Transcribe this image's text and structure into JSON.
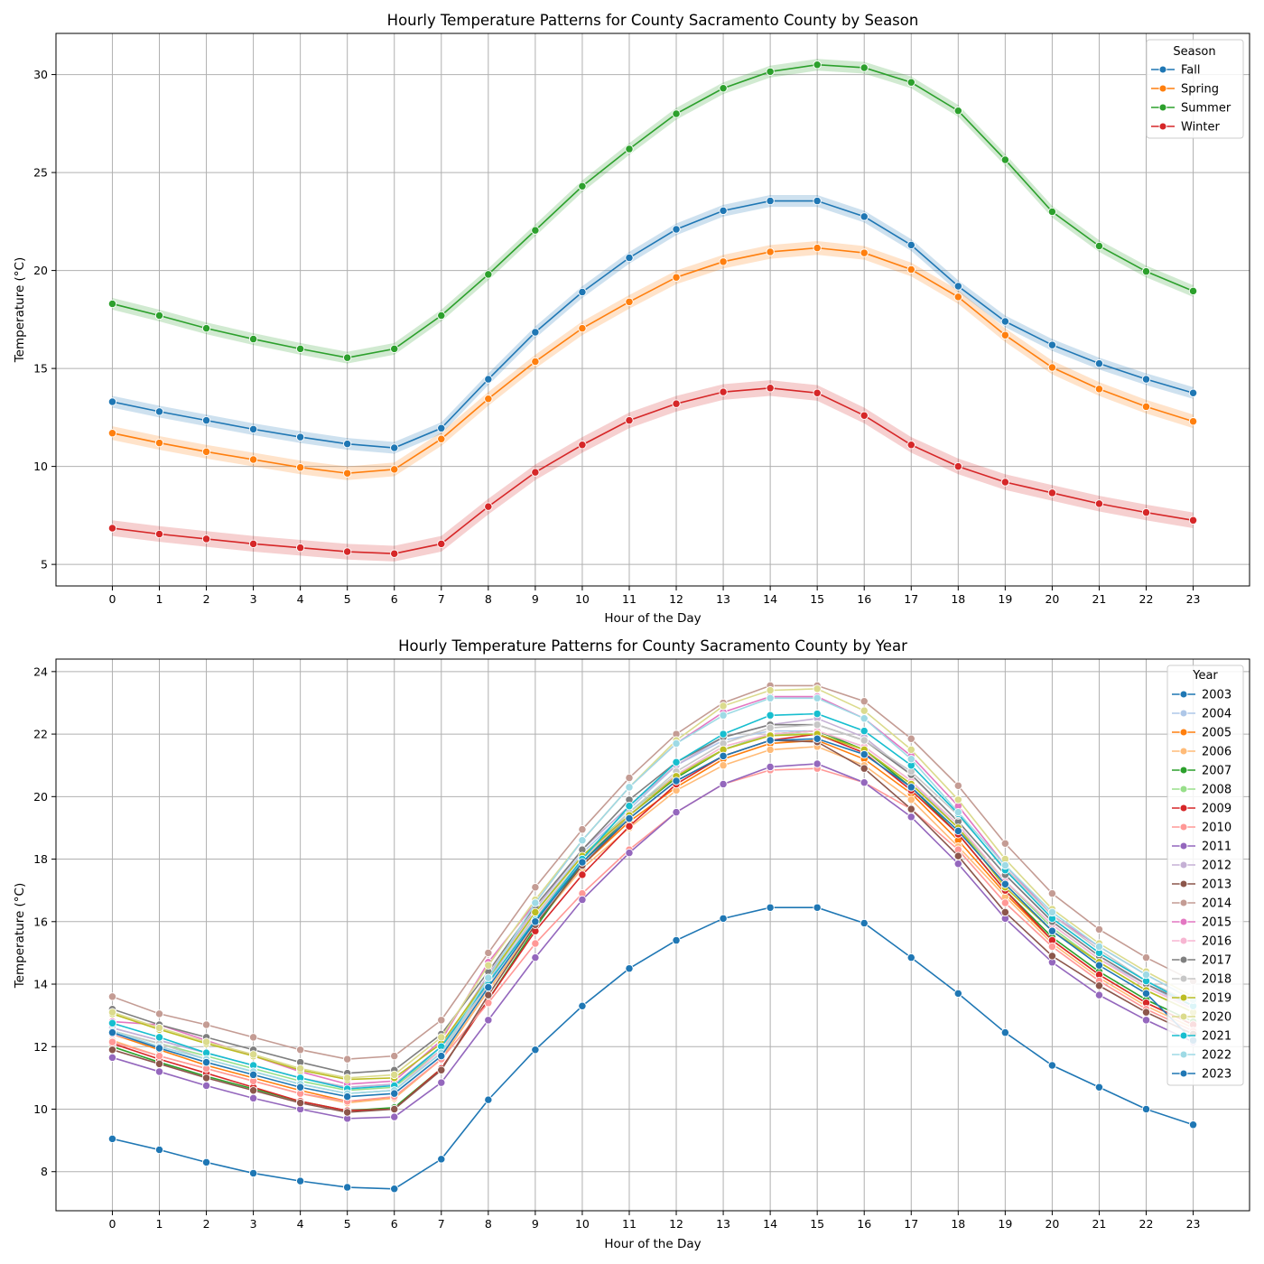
{
  "chart_data": [
    {
      "type": "line",
      "title": "Hourly Temperature Patterns for County Sacramento County by Season",
      "xlabel": "Hour of the Day",
      "ylabel": "Temperature (°C)",
      "x": [
        0,
        1,
        2,
        3,
        4,
        5,
        6,
        7,
        8,
        9,
        10,
        11,
        12,
        13,
        14,
        15,
        16,
        17,
        18,
        19,
        20,
        21,
        22,
        23
      ],
      "xlim": [
        -1.2,
        24.2
      ],
      "ylim": [
        3.9,
        32.1
      ],
      "yticks": [
        5,
        10,
        15,
        20,
        25,
        30
      ],
      "grid": true,
      "legend_title": "Season",
      "legend_position": "top-right",
      "confidence_band": true,
      "series": [
        {
          "name": "Fall",
          "color": "#1f77b4",
          "band": 0.3,
          "values": [
            13.3,
            12.8,
            12.35,
            11.9,
            11.5,
            11.15,
            10.95,
            11.95,
            14.45,
            16.85,
            18.9,
            20.65,
            22.1,
            23.05,
            23.55,
            23.55,
            22.75,
            21.3,
            19.2,
            17.4,
            16.2,
            15.25,
            14.45,
            13.75
          ]
        },
        {
          "name": "Spring",
          "color": "#ff7f0e",
          "band": 0.35,
          "values": [
            11.7,
            11.2,
            10.75,
            10.35,
            9.95,
            9.65,
            9.85,
            11.4,
            13.45,
            15.35,
            17.05,
            18.4,
            19.65,
            20.45,
            20.95,
            21.15,
            20.9,
            20.05,
            18.65,
            16.7,
            15.05,
            13.95,
            13.05,
            12.3
          ]
        },
        {
          "name": "Summer",
          "color": "#2ca02c",
          "band": 0.3,
          "values": [
            18.3,
            17.7,
            17.05,
            16.5,
            16.0,
            15.55,
            16.0,
            17.7,
            19.8,
            22.05,
            24.3,
            26.2,
            28.0,
            29.3,
            30.15,
            30.5,
            30.35,
            29.6,
            28.15,
            25.65,
            23.0,
            21.25,
            19.95,
            18.95
          ]
        },
        {
          "name": "Winter",
          "color": "#d62728",
          "band": 0.4,
          "values": [
            6.85,
            6.55,
            6.3,
            6.05,
            5.85,
            5.65,
            5.55,
            6.05,
            7.95,
            9.7,
            11.1,
            12.35,
            13.2,
            13.8,
            14.0,
            13.75,
            12.6,
            11.1,
            10.0,
            9.2,
            8.65,
            8.1,
            7.65,
            7.25
          ]
        }
      ]
    },
    {
      "type": "line",
      "title": "Hourly Temperature Patterns for County Sacramento County by Year",
      "xlabel": "Hour of the Day",
      "ylabel": "Temperature (°C)",
      "x": [
        0,
        1,
        2,
        3,
        4,
        5,
        6,
        7,
        8,
        9,
        10,
        11,
        12,
        13,
        14,
        15,
        16,
        17,
        18,
        19,
        20,
        21,
        22,
        23
      ],
      "xlim": [
        -1.2,
        24.2
      ],
      "ylim": [
        6.75,
        24.4
      ],
      "yticks": [
        8,
        10,
        12,
        14,
        16,
        18,
        20,
        22,
        24
      ],
      "grid": true,
      "legend_title": "Year",
      "legend_position": "top-right",
      "series": [
        {
          "name": "2003",
          "color": "#1f77b4",
          "values": [
            9.05,
            8.7,
            8.3,
            7.95,
            7.7,
            7.5,
            7.45,
            8.4,
            10.3,
            11.9,
            13.3,
            14.5,
            15.4,
            16.1,
            16.45,
            16.45,
            15.95,
            14.85,
            13.7,
            12.45,
            11.4,
            10.7,
            10.0,
            9.5
          ]
        },
        {
          "name": "2004",
          "color": "#aec7e8",
          "values": [
            12.6,
            12.2,
            11.8,
            11.4,
            11.0,
            10.7,
            10.8,
            11.9,
            14.1,
            16.3,
            18.2,
            19.6,
            21.0,
            21.8,
            22.1,
            22.1,
            21.6,
            20.5,
            19.0,
            17.3,
            15.9,
            14.8,
            14.0,
            13.2
          ]
        },
        {
          "name": "2005",
          "color": "#ff7f0e",
          "values": [
            12.4,
            11.9,
            11.4,
            11.0,
            10.6,
            10.25,
            10.35,
            11.6,
            13.8,
            15.9,
            17.8,
            19.2,
            20.3,
            21.2,
            21.7,
            21.8,
            21.2,
            20.1,
            18.6,
            16.9,
            15.4,
            14.3,
            13.4,
            12.7
          ]
        },
        {
          "name": "2006",
          "color": "#ffbb78",
          "values": [
            12.2,
            11.7,
            11.3,
            10.9,
            10.5,
            10.2,
            10.35,
            11.6,
            13.8,
            15.9,
            17.7,
            19.0,
            20.2,
            21.0,
            21.5,
            21.6,
            21.0,
            19.9,
            18.4,
            16.8,
            15.3,
            14.2,
            13.3,
            12.6
          ]
        },
        {
          "name": "2007",
          "color": "#2ca02c",
          "values": [
            12.0,
            11.5,
            11.05,
            10.65,
            10.25,
            9.95,
            10.05,
            11.3,
            13.5,
            15.8,
            17.9,
            19.4,
            20.6,
            21.5,
            22.0,
            22.1,
            21.5,
            20.3,
            18.8,
            17.0,
            15.5,
            14.4,
            13.5,
            12.8
          ]
        },
        {
          "name": "2008",
          "color": "#98df8a",
          "values": [
            12.5,
            12.1,
            11.7,
            11.3,
            10.9,
            10.6,
            10.7,
            11.9,
            14.2,
            16.3,
            18.1,
            19.5,
            20.7,
            21.5,
            22.0,
            22.0,
            21.5,
            20.4,
            19.0,
            17.3,
            15.8,
            14.7,
            13.8,
            13.1
          ]
        },
        {
          "name": "2009",
          "color": "#d62728",
          "values": [
            12.1,
            11.6,
            11.15,
            10.7,
            10.25,
            9.95,
            10.0,
            11.3,
            13.5,
            15.7,
            17.5,
            19.05,
            20.4,
            21.3,
            21.8,
            22.0,
            21.4,
            20.2,
            18.8,
            17.0,
            15.4,
            14.3,
            13.4,
            12.7
          ]
        },
        {
          "name": "2010",
          "color": "#ff9896",
          "values": [
            12.15,
            11.7,
            11.3,
            10.9,
            10.5,
            10.25,
            10.4,
            11.6,
            13.4,
            15.3,
            16.9,
            18.3,
            19.5,
            20.4,
            20.85,
            20.9,
            20.45,
            19.6,
            18.3,
            16.6,
            15.2,
            14.1,
            13.2,
            12.5
          ]
        },
        {
          "name": "2011",
          "color": "#9467bd",
          "values": [
            11.65,
            11.2,
            10.75,
            10.35,
            10.0,
            9.7,
            9.75,
            10.85,
            12.85,
            14.85,
            16.7,
            18.2,
            19.5,
            20.4,
            20.95,
            21.05,
            20.45,
            19.35,
            17.85,
            16.1,
            14.7,
            13.65,
            12.85,
            12.15
          ]
        },
        {
          "name": "2012",
          "color": "#c5b0d5",
          "values": [
            12.6,
            12.2,
            11.8,
            11.4,
            11.0,
            10.7,
            10.8,
            12.0,
            14.3,
            16.4,
            18.3,
            19.7,
            21.0,
            21.9,
            22.3,
            22.5,
            21.9,
            20.7,
            19.2,
            17.5,
            16.0,
            14.9,
            14.0,
            13.3
          ]
        },
        {
          "name": "2013",
          "color": "#8c564b",
          "values": [
            11.9,
            11.45,
            11.0,
            10.6,
            10.2,
            9.9,
            10.0,
            11.25,
            13.65,
            15.9,
            17.8,
            19.3,
            20.5,
            21.3,
            21.8,
            21.75,
            20.9,
            19.6,
            18.1,
            16.3,
            14.9,
            13.95,
            13.1,
            12.4
          ]
        },
        {
          "name": "2014",
          "color": "#c49c94",
          "values": [
            13.6,
            13.05,
            12.7,
            12.3,
            11.9,
            11.6,
            11.7,
            12.85,
            15.0,
            17.1,
            18.95,
            20.6,
            22.0,
            23.0,
            23.55,
            23.55,
            23.05,
            21.85,
            20.35,
            18.5,
            16.9,
            15.75,
            14.85,
            14.1
          ]
        },
        {
          "name": "2015",
          "color": "#e377c2",
          "values": [
            12.8,
            12.7,
            12.2,
            11.7,
            11.2,
            10.8,
            10.9,
            12.2,
            14.7,
            16.6,
            18.6,
            20.3,
            21.7,
            22.7,
            23.2,
            23.2,
            22.5,
            21.3,
            19.7,
            17.8,
            16.2,
            15.2,
            14.3,
            13.5
          ]
        },
        {
          "name": "2016",
          "color": "#f7b6d2",
          "values": [
            12.4,
            12.0,
            11.6,
            11.2,
            10.8,
            10.5,
            10.6,
            11.9,
            14.0,
            16.1,
            18.0,
            19.4,
            20.7,
            21.6,
            22.0,
            22.1,
            21.6,
            20.5,
            19.1,
            17.3,
            15.9,
            14.8,
            13.9,
            13.2
          ]
        },
        {
          "name": "2017",
          "color": "#7f7f7f",
          "values": [
            13.2,
            12.7,
            12.3,
            11.9,
            11.5,
            11.15,
            11.25,
            12.4,
            14.4,
            16.5,
            18.3,
            19.9,
            21.1,
            21.9,
            22.3,
            22.3,
            21.8,
            20.7,
            19.2,
            17.5,
            16.0,
            14.9,
            14.0,
            13.3
          ]
        },
        {
          "name": "2018",
          "color": "#c7c7c7",
          "values": [
            12.5,
            12.1,
            11.6,
            11.2,
            10.8,
            10.5,
            10.6,
            11.8,
            14.0,
            16.2,
            18.0,
            19.5,
            20.8,
            21.7,
            22.2,
            22.3,
            21.8,
            20.8,
            19.4,
            17.7,
            16.2,
            15.1,
            14.1,
            13.4
          ]
        },
        {
          "name": "2019",
          "color": "#bcbd22",
          "values": [
            13.05,
            12.55,
            12.1,
            11.7,
            11.25,
            10.95,
            11.0,
            12.1,
            14.2,
            16.3,
            18.1,
            19.4,
            20.65,
            21.5,
            21.95,
            22.0,
            21.5,
            20.4,
            19.0,
            17.1,
            15.7,
            14.7,
            13.8,
            13.1
          ]
        },
        {
          "name": "2020",
          "color": "#dbdb8d",
          "values": [
            13.1,
            12.6,
            12.15,
            11.75,
            11.3,
            11.0,
            11.1,
            12.3,
            14.6,
            16.7,
            18.6,
            20.3,
            21.8,
            22.9,
            23.4,
            23.45,
            22.75,
            21.5,
            19.9,
            18.0,
            16.4,
            15.3,
            14.4,
            13.6
          ]
        },
        {
          "name": "2021",
          "color": "#17becf",
          "values": [
            12.75,
            12.3,
            11.8,
            11.4,
            11.0,
            10.65,
            10.75,
            12.0,
            14.05,
            16.05,
            18.0,
            19.7,
            21.1,
            22.0,
            22.6,
            22.65,
            22.1,
            21.0,
            19.45,
            17.65,
            16.1,
            15.0,
            14.1,
            13.3
          ]
        },
        {
          "name": "2022",
          "color": "#9edae5",
          "values": [
            12.5,
            12.0,
            11.6,
            11.2,
            10.8,
            10.5,
            10.6,
            11.8,
            14.2,
            16.6,
            18.6,
            20.3,
            21.7,
            22.6,
            23.15,
            23.15,
            22.5,
            21.2,
            19.5,
            17.8,
            16.3,
            15.2,
            14.3,
            13.5
          ]
        },
        {
          "name": "2023",
          "color": "#1f77b4",
          "values": [
            12.45,
            11.95,
            11.5,
            11.1,
            10.7,
            10.4,
            10.5,
            11.7,
            13.9,
            16.0,
            17.9,
            19.3,
            20.5,
            21.3,
            21.8,
            21.85,
            21.35,
            20.3,
            18.9,
            17.2,
            15.7,
            14.6,
            13.7,
            12.2
          ]
        }
      ]
    }
  ]
}
